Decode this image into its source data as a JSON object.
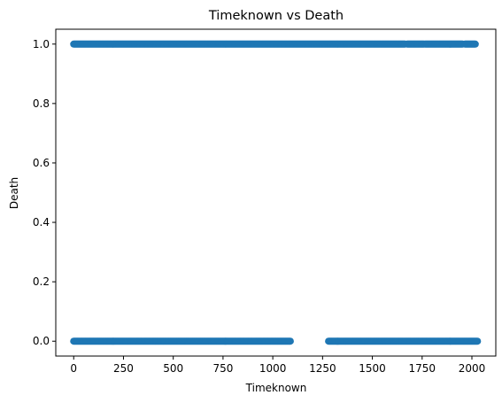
{
  "chart_data": {
    "type": "scatter",
    "title": "Timeknown vs Death",
    "xlabel": "Timeknown",
    "ylabel": "Death",
    "xlim": [
      -90,
      2120
    ],
    "ylim": [
      -0.05,
      1.05
    ],
    "xticks": [
      0,
      250,
      500,
      750,
      1000,
      1250,
      1500,
      1750,
      2000
    ],
    "yticks": [
      0.0,
      0.2,
      0.4,
      0.6,
      0.8,
      1.0
    ],
    "ytick_labels": [
      "0.0",
      "0.2",
      "0.4",
      "0.6",
      "0.8",
      "1.0"
    ],
    "grid": false,
    "legend": "none",
    "marker_color": "#1f77b4",
    "series": [
      {
        "y": 1.0,
        "x_ranges": [
          [
            0,
            1665
          ],
          [
            1675,
            1760
          ],
          [
            1765,
            1955
          ],
          [
            1965,
            2020
          ]
        ]
      },
      {
        "y": 0.0,
        "x_ranges": [
          [
            0,
            1090
          ],
          [
            1280,
            2030
          ]
        ]
      }
    ]
  }
}
